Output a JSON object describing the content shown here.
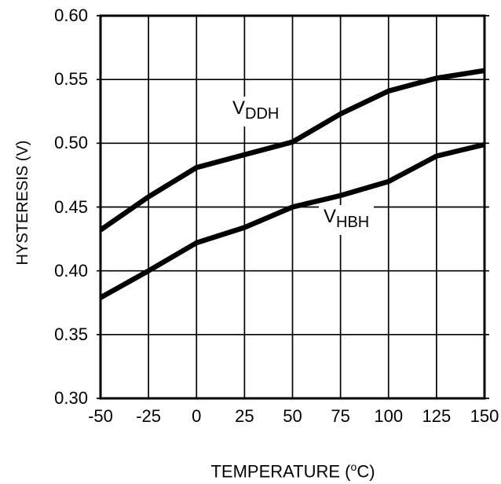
{
  "colors": {
    "foreground": "#000000",
    "background": "#ffffff"
  },
  "chart_data": {
    "type": "line",
    "title": "",
    "xlabel_full": "TEMPERATURE (°C)",
    "xlabel_parts": {
      "prefix": "TEMPERATURE (",
      "sup": "o",
      "suffix": "C)"
    },
    "ylabel": "HYSTERESIS (V)",
    "xlim": [
      -50,
      150
    ],
    "ylim": [
      0.3,
      0.6
    ],
    "grid": true,
    "legend_position": "inline-labels",
    "x": [
      -50,
      -25,
      0,
      25,
      50,
      75,
      100,
      125,
      150
    ],
    "x_tick_labels": [
      "-50",
      "-25",
      "0",
      "25",
      "50",
      "75",
      "100",
      "125",
      "150"
    ],
    "y_ticks": [
      0.3,
      0.35,
      0.4,
      0.45,
      0.5,
      0.55,
      0.6
    ],
    "y_tick_labels": [
      "0.30",
      "0.35",
      "0.40",
      "0.45",
      "0.50",
      "0.55",
      "0.60"
    ],
    "series": [
      {
        "name": "VDDH",
        "label_main": "V",
        "label_sub": "DDH",
        "values": [
          0.432,
          0.458,
          0.481,
          0.491,
          0.501,
          0.523,
          0.541,
          0.551,
          0.557
        ]
      },
      {
        "name": "VHBH",
        "label_main": "V",
        "label_sub": "HBH",
        "values": [
          0.379,
          0.4,
          0.422,
          0.434,
          0.45,
          0.459,
          0.47,
          0.49,
          0.499
        ]
      }
    ],
    "line_color": "#000000",
    "line_width": 6.5
  }
}
